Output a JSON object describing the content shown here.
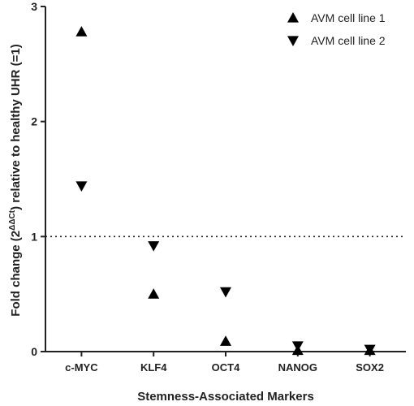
{
  "chart_data": {
    "type": "scatter",
    "categories": [
      "c-MYC",
      "KLF4",
      "OCT4",
      "NANOG",
      "SOX2"
    ],
    "series": [
      {
        "name": "AVM cell line 1",
        "marker": "triangle-up",
        "values": [
          2.78,
          0.5,
          0.09,
          0.01,
          0.01
        ]
      },
      {
        "name": "AVM cell line 2",
        "marker": "triangle-down",
        "values": [
          1.44,
          0.92,
          0.52,
          0.05,
          0.02
        ]
      }
    ],
    "xlabel": "Stemness-Associated Markers",
    "ylabel_parts": {
      "before": "Fold change (2",
      "superscript": "ΔΔCt",
      "after": ") relative to healthy UHR (=1)"
    },
    "ylim": [
      0,
      3
    ],
    "yticks": [
      "0",
      "1",
      "2",
      "3"
    ],
    "reference_line": {
      "y": 1,
      "style": "dotted"
    },
    "legend_position": "top-right",
    "grid": false,
    "marker_color": "#000000"
  }
}
